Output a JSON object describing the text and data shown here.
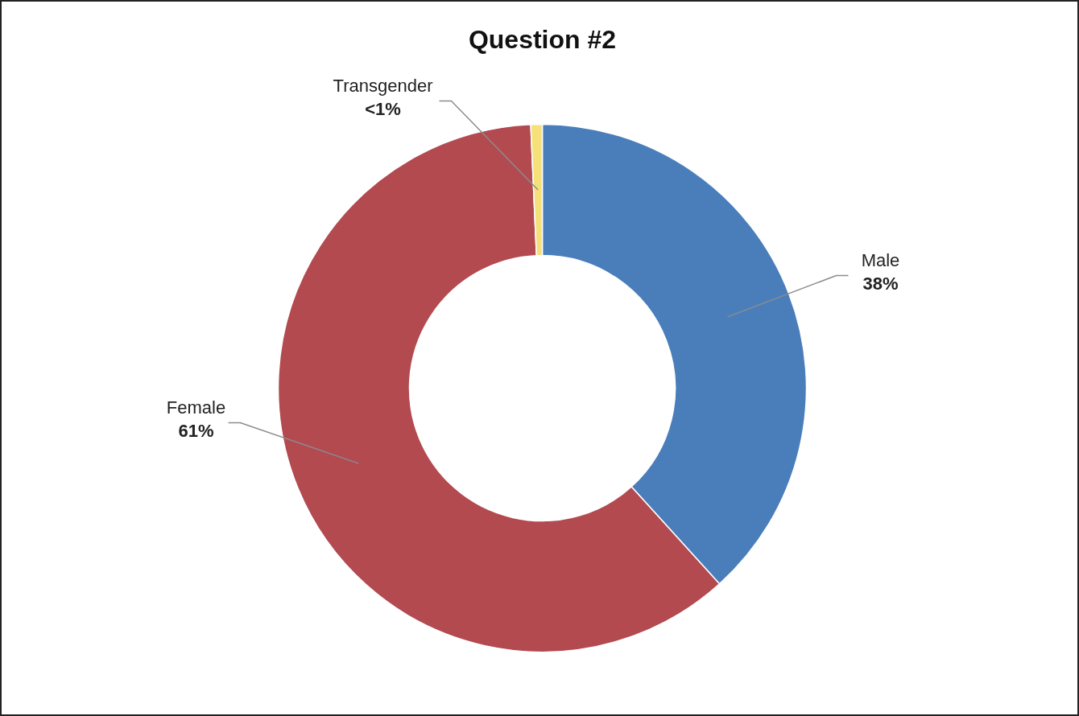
{
  "chart_data": {
    "type": "donut",
    "title": "Question #2",
    "categories": [
      "Male",
      "Female",
      "Transgender"
    ],
    "values": [
      38.3,
      61,
      0.7
    ],
    "colors": [
      "#4a7ebb",
      "#b24a50",
      "#f5e07a"
    ],
    "value_labels": [
      "38%",
      "61%",
      "<1%"
    ]
  }
}
